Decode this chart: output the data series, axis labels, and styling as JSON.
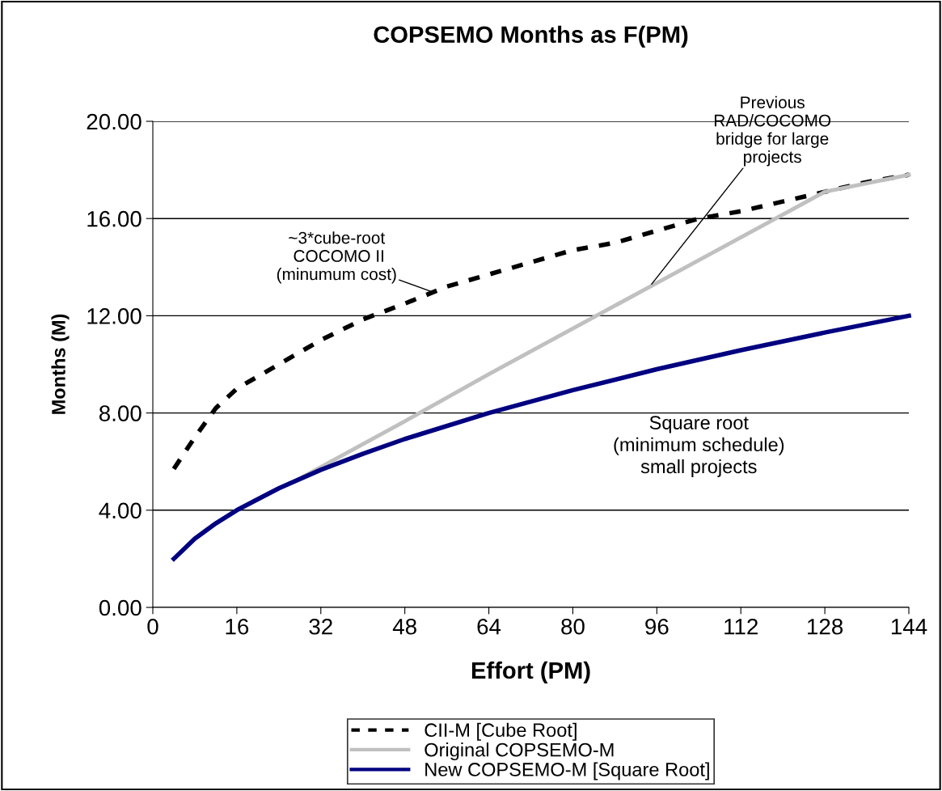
{
  "chart_data": {
    "type": "line",
    "title": "COPSEMO Months as F(PM)",
    "xlabel": "Effort (PM)",
    "ylabel": "Months (M)",
    "xlim": [
      0,
      144
    ],
    "xticks": [
      0,
      16,
      32,
      48,
      64,
      80,
      96,
      112,
      128,
      144
    ],
    "ylim": [
      0,
      20
    ],
    "yticks": [
      {
        "value": 0,
        "label": "0.00"
      },
      {
        "value": 4,
        "label": "4.00"
      },
      {
        "value": 8,
        "label": "8.00"
      },
      {
        "value": 12,
        "label": "12.00"
      },
      {
        "value": 16,
        "label": "16.00"
      },
      {
        "value": 20,
        "label": "20.00"
      }
    ],
    "grid": "y",
    "legend": "bottom",
    "marker": "none",
    "series": [
      {
        "name": "CII-M [Cube Root]",
        "color": "#000000",
        "line_style": "dashed",
        "x": [
          4,
          8,
          12,
          16,
          24,
          32,
          40,
          48,
          56,
          64,
          72,
          80,
          88,
          96,
          104,
          112,
          120,
          128,
          136,
          144
        ],
        "values": [
          5.7,
          7.0,
          8.2,
          9.0,
          10.0,
          11.0,
          11.85,
          12.5,
          13.2,
          13.7,
          14.2,
          14.7,
          15.0,
          15.5,
          16.0,
          16.3,
          16.7,
          17.1,
          17.5,
          17.8
        ]
      },
      {
        "name": "Original COPSEMO-M",
        "color": "#c0c0c0",
        "line_style": "solid",
        "x": [
          4,
          8,
          12,
          16,
          20,
          24,
          28,
          48,
          64,
          96,
          128,
          144
        ],
        "values": [
          2.0,
          2.83,
          3.46,
          4.0,
          4.47,
          4.9,
          5.3,
          7.66,
          9.6,
          13.35,
          17.1,
          17.8
        ]
      },
      {
        "name": "New COPSEMO-M [Square Root]",
        "color": "#000080",
        "line_style": "solid",
        "x": [
          4,
          8,
          12,
          16,
          24,
          32,
          40,
          48,
          64,
          80,
          96,
          112,
          128,
          144
        ],
        "values": [
          2.0,
          2.83,
          3.46,
          4.0,
          4.9,
          5.66,
          6.32,
          6.93,
          8.0,
          8.94,
          9.8,
          10.58,
          11.31,
          12.0
        ]
      }
    ],
    "annotations": [
      {
        "text": "~3*cube-root\n COCOMO II\n(minumum cost)",
        "x": 53,
        "y": 13.0
      },
      {
        "text": "Previous\nRAD/COCOMO\nbridge for large\nprojects",
        "x": 95,
        "y": 13.3
      },
      "Square root\n(minimum schedule)\nsmall projects"
    ]
  }
}
